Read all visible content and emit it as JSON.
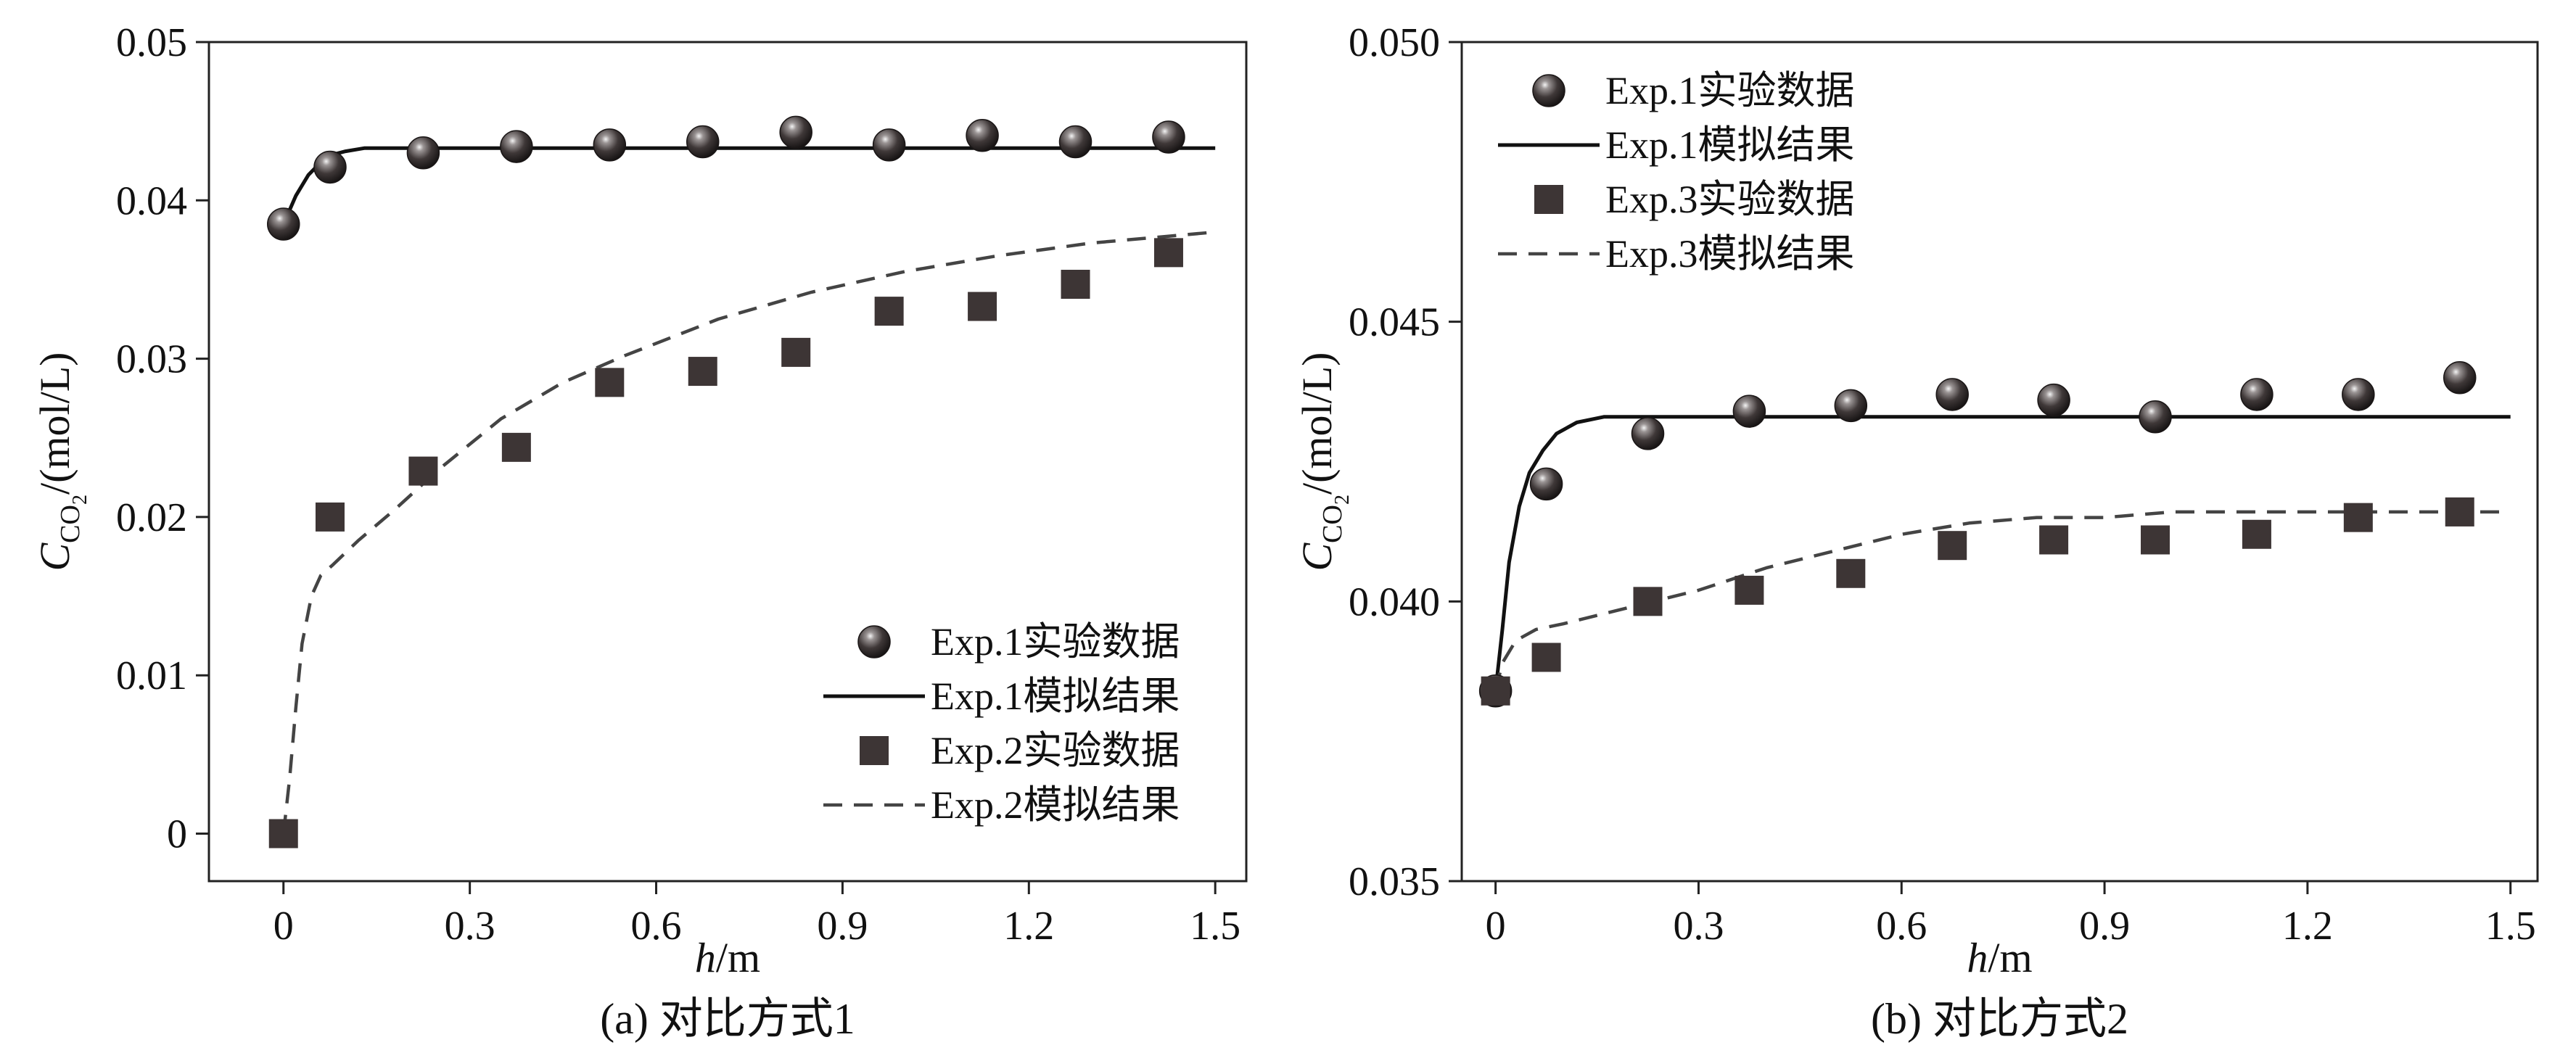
{
  "chart_data": [
    {
      "type": "scatter",
      "panel": "a",
      "caption": "(a) 对比方式1",
      "xlabel_italic": "h",
      "xlabel_unit": "/m",
      "ylabel_symbol": "C",
      "ylabel_sub": "CO",
      "ylabel_subsub": "2",
      "ylabel_unit": "/(mol/L)",
      "xlim": [
        -0.12,
        1.55
      ],
      "ylim": [
        -0.003,
        0.05
      ],
      "xticks": [
        0,
        0.3,
        0.6,
        0.9,
        1.2,
        1.5
      ],
      "xtick_labels": [
        "0",
        "0.3",
        "0.6",
        "0.9",
        "1.2",
        "1.5"
      ],
      "yticks": [
        0,
        0.01,
        0.02,
        0.03,
        0.04,
        0.05
      ],
      "ytick_labels": [
        "0",
        "0.01",
        "0.02",
        "0.03",
        "0.04",
        "0.05"
      ],
      "legend_position": "bottom-right",
      "series": [
        {
          "name": "Exp.1实验数据",
          "kind": "sphere",
          "x": [
            0,
            0.075,
            0.225,
            0.375,
            0.525,
            0.675,
            0.825,
            0.975,
            1.125,
            1.275,
            1.425
          ],
          "y": [
            0.0385,
            0.0421,
            0.043,
            0.0434,
            0.0435,
            0.0437,
            0.0443,
            0.0435,
            0.0441,
            0.0437,
            0.044
          ]
        },
        {
          "name": "Exp.1模拟结果",
          "kind": "solid",
          "x": [
            0,
            0.02,
            0.04,
            0.06,
            0.08,
            0.1,
            0.13,
            0.17,
            0.22,
            0.3,
            0.5,
            0.8,
            1.1,
            1.5
          ],
          "y": [
            0.0385,
            0.0403,
            0.0416,
            0.0424,
            0.0429,
            0.0431,
            0.0433,
            0.0433,
            0.0433,
            0.0433,
            0.0433,
            0.0433,
            0.0433,
            0.0433
          ]
        },
        {
          "name": "Exp.2实验数据",
          "kind": "square",
          "x": [
            0,
            0.075,
            0.225,
            0.375,
            0.525,
            0.675,
            0.825,
            0.975,
            1.125,
            1.275,
            1.425
          ],
          "y": [
            0.0,
            0.02,
            0.0229,
            0.0244,
            0.0285,
            0.0292,
            0.0304,
            0.033,
            0.0333,
            0.0347,
            0.0367
          ]
        },
        {
          "name": "Exp.2模拟结果",
          "kind": "dashed",
          "x": [
            0,
            0.01,
            0.02,
            0.03,
            0.045,
            0.06,
            0.08,
            0.12,
            0.18,
            0.25,
            0.35,
            0.45,
            0.55,
            0.7,
            0.85,
            1.0,
            1.15,
            1.3,
            1.5
          ],
          "y": [
            0.0,
            0.0035,
            0.008,
            0.012,
            0.015,
            0.0163,
            0.017,
            0.0185,
            0.0205,
            0.023,
            0.0262,
            0.0285,
            0.0302,
            0.0325,
            0.0342,
            0.0355,
            0.0365,
            0.0373,
            0.038
          ]
        }
      ]
    },
    {
      "type": "scatter",
      "panel": "b",
      "caption": "(b) 对比方式2",
      "xlabel_italic": "h",
      "xlabel_unit": "/m",
      "ylabel_symbol": "C",
      "ylabel_sub": "CO",
      "ylabel_subsub": "2",
      "ylabel_unit": "/(mol/L)",
      "xlim": [
        -0.05,
        1.54
      ],
      "ylim": [
        0.035,
        0.05
      ],
      "xticks": [
        0,
        0.3,
        0.6,
        0.9,
        1.2,
        1.5
      ],
      "xtick_labels": [
        "0",
        "0.3",
        "0.6",
        "0.9",
        "1.2",
        "1.5"
      ],
      "yticks": [
        0.035,
        0.04,
        0.045,
        0.05
      ],
      "ytick_labels": [
        "0.035",
        "0.040",
        "0.045",
        "0.050"
      ],
      "legend_position": "top-left",
      "series": [
        {
          "name": "Exp.1实验数据",
          "kind": "sphere",
          "x": [
            0,
            0.075,
            0.225,
            0.375,
            0.525,
            0.675,
            0.825,
            0.975,
            1.125,
            1.275,
            1.425
          ],
          "y": [
            0.0384,
            0.0421,
            0.043,
            0.0434,
            0.0435,
            0.0437,
            0.0436,
            0.0433,
            0.0437,
            0.0437,
            0.044
          ]
        },
        {
          "name": "Exp.1模拟结果",
          "kind": "solid",
          "x": [
            0,
            0.01,
            0.02,
            0.035,
            0.05,
            0.07,
            0.09,
            0.12,
            0.16,
            0.22,
            0.3,
            0.5,
            0.8,
            1.1,
            1.5
          ],
          "y": [
            0.0384,
            0.0395,
            0.0407,
            0.0417,
            0.0423,
            0.0427,
            0.043,
            0.0432,
            0.0433,
            0.0433,
            0.0433,
            0.0433,
            0.0433,
            0.0433,
            0.0433
          ]
        },
        {
          "name": "Exp.3实验数据",
          "kind": "square",
          "x": [
            0,
            0.075,
            0.225,
            0.375,
            0.525,
            0.675,
            0.825,
            0.975,
            1.125,
            1.275,
            1.425
          ],
          "y": [
            0.0384,
            0.039,
            0.04,
            0.0402,
            0.0405,
            0.041,
            0.0411,
            0.0411,
            0.0412,
            0.0415,
            0.0416
          ]
        },
        {
          "name": "Exp.3模拟结果",
          "kind": "dashed",
          "x": [
            0,
            0.01,
            0.03,
            0.06,
            0.1,
            0.2,
            0.3,
            0.4,
            0.5,
            0.6,
            0.7,
            0.8,
            0.9,
            1.0,
            1.2,
            1.5
          ],
          "y": [
            0.0384,
            0.0389,
            0.0393,
            0.0395,
            0.0396,
            0.0399,
            0.0402,
            0.0406,
            0.0409,
            0.0412,
            0.0414,
            0.0415,
            0.0415,
            0.0416,
            0.0416,
            0.0416
          ]
        }
      ]
    }
  ]
}
